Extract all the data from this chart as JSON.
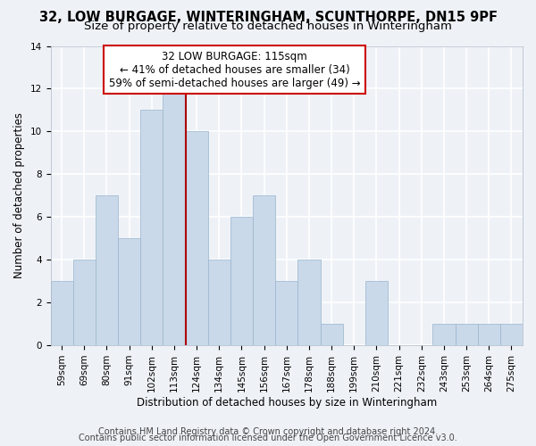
{
  "title": "32, LOW BURGAGE, WINTERINGHAM, SCUNTHORPE, DN15 9PF",
  "subtitle": "Size of property relative to detached houses in Winteringham",
  "xlabel": "Distribution of detached houses by size in Winteringham",
  "ylabel": "Number of detached properties",
  "footer1": "Contains HM Land Registry data © Crown copyright and database right 2024.",
  "footer2": "Contains public sector information licensed under the Open Government Licence v3.0.",
  "categories": [
    "59sqm",
    "69sqm",
    "80sqm",
    "91sqm",
    "102sqm",
    "113sqm",
    "124sqm",
    "134sqm",
    "145sqm",
    "156sqm",
    "167sqm",
    "178sqm",
    "188sqm",
    "199sqm",
    "210sqm",
    "221sqm",
    "232sqm",
    "243sqm",
    "253sqm",
    "264sqm",
    "275sqm"
  ],
  "values": [
    3,
    4,
    7,
    5,
    11,
    12,
    10,
    4,
    6,
    7,
    3,
    4,
    1,
    0,
    3,
    0,
    0,
    1,
    1,
    1,
    1
  ],
  "bar_color": "#c9d9ea",
  "bar_edge_color": "#9ab4cc",
  "vline_x": 5.5,
  "vline_color": "#aa0000",
  "annotation_line1": "32 LOW BURGAGE: 115sqm",
  "annotation_line2": "← 41% of detached houses are smaller (34)",
  "annotation_line3": "59% of semi-detached houses are larger (49) →",
  "annotation_box_color": "#ffffff",
  "annotation_box_edge": "#cc0000",
  "ylim": [
    0,
    14
  ],
  "yticks": [
    0,
    2,
    4,
    6,
    8,
    10,
    12,
    14
  ],
  "background_color": "#eef2f7",
  "grid_color": "#ffffff",
  "title_fontsize": 10.5,
  "subtitle_fontsize": 9.5,
  "axis_label_fontsize": 8.5,
  "tick_fontsize": 7.5,
  "footer_fontsize": 7,
  "annotation_fontsize": 8.5
}
